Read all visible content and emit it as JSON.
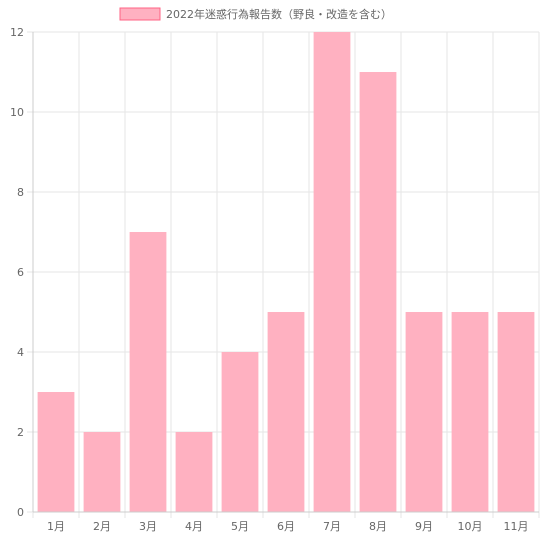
{
  "chart_data": {
    "type": "bar",
    "categories": [
      "1月",
      "2月",
      "3月",
      "4月",
      "5月",
      "6月",
      "7月",
      "8月",
      "9月",
      "10月",
      "11月"
    ],
    "series": [
      {
        "name": "2022年迷惑行為報告数（野良・改造を含む）",
        "values": [
          3,
          2,
          7,
          2,
          4,
          5,
          12,
          11,
          5,
          5,
          5
        ]
      }
    ],
    "ylim": [
      0,
      12
    ],
    "yticks": [
      0,
      2,
      4,
      6,
      8,
      10,
      12
    ],
    "grid": true,
    "legend_position": "top-center",
    "colors": {
      "bar_fill": "#ffb1c1",
      "bar_border": "#ff6384",
      "grid": "#e5e5e5",
      "axis": "#cccccc",
      "text": "#666666"
    }
  }
}
